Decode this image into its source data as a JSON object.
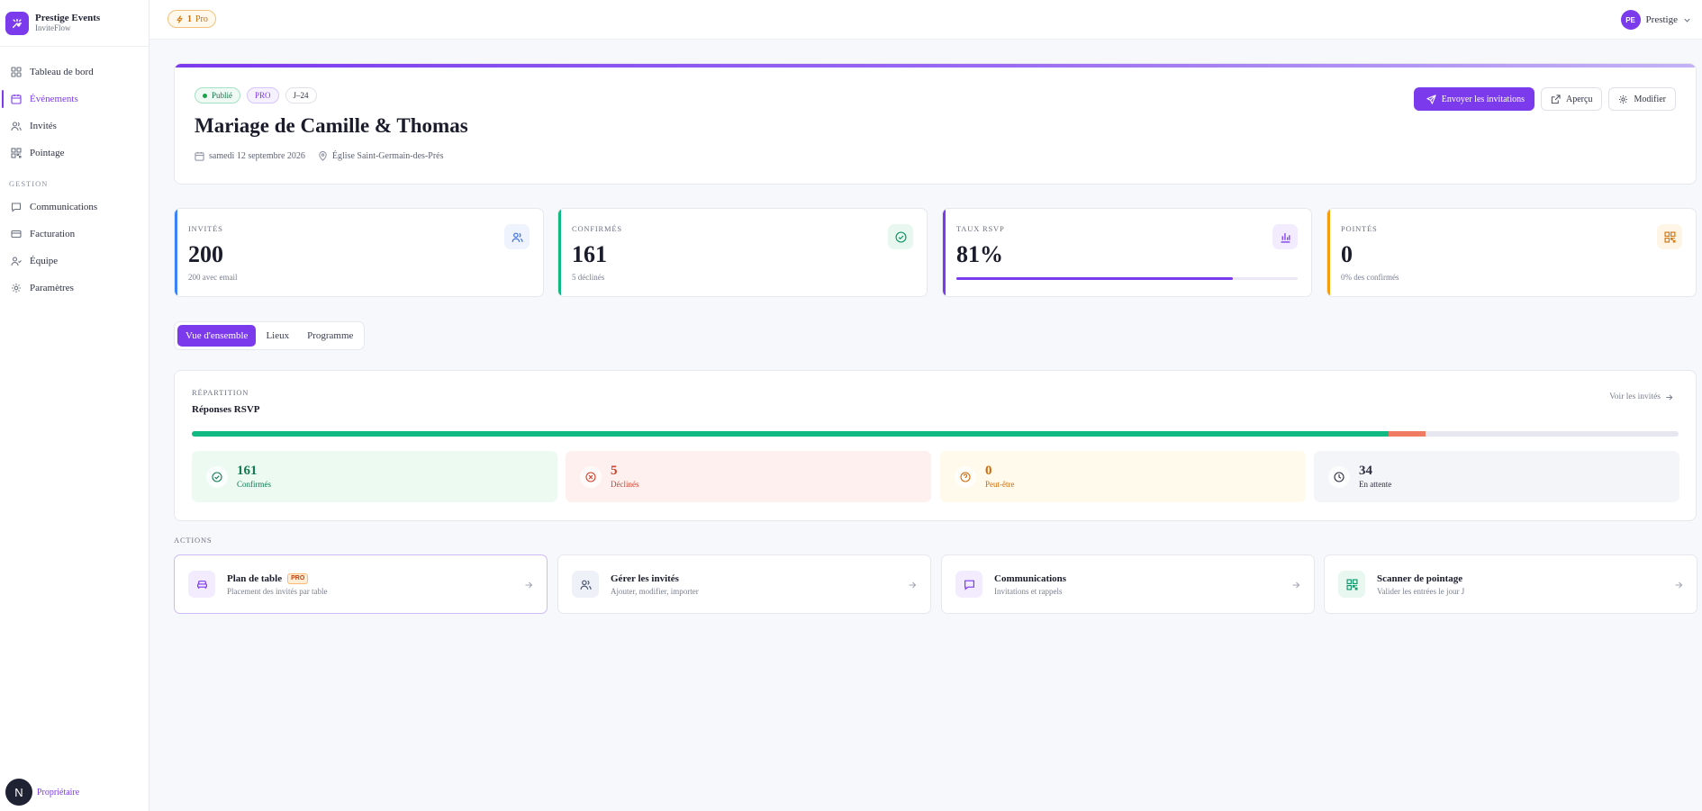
{
  "brand": {
    "name": "Prestige Events",
    "subtitle": "InviteFlow"
  },
  "nav": {
    "items": [
      {
        "label": "Tableau de bord",
        "icon": "grid-icon"
      },
      {
        "label": "Événements",
        "icon": "calendar-icon",
        "active": true
      },
      {
        "label": "Invités",
        "icon": "users-icon"
      },
      {
        "label": "Pointage",
        "icon": "qr-icon"
      }
    ],
    "section_label": "GESTION",
    "management": [
      {
        "label": "Communications",
        "icon": "message-icon"
      },
      {
        "label": "Facturation",
        "icon": "card-icon"
      },
      {
        "label": "Équipe",
        "icon": "team-icon"
      },
      {
        "label": "Paramètres",
        "icon": "gear-icon"
      }
    ],
    "owner": {
      "initial": "N",
      "label": "Propriétaire"
    }
  },
  "topbar": {
    "plan": {
      "count": "1",
      "label": "Pro"
    },
    "user": {
      "initials": "PE",
      "name": "Prestige"
    }
  },
  "event": {
    "chips": {
      "status": "Publié",
      "plan": "PRO",
      "countdown": "J–24"
    },
    "title": "Mariage de Camille & Thomas",
    "date": "samedi 12 septembre 2026",
    "venue": "Église Saint-Germain-des-Prés",
    "actions": {
      "send": "Envoyer les invitations",
      "preview": "Aperçu",
      "edit": "Modifier"
    }
  },
  "stats": [
    {
      "label": "INVITÉS",
      "value": "200",
      "sub": "200 avec email",
      "accent": "#3b82f6",
      "icon_bg": "#eef3fe",
      "icon_color": "#3b6fe0"
    },
    {
      "label": "CONFIRMÉS",
      "value": "161",
      "sub": "5 déclinés",
      "accent": "#10b981",
      "icon_bg": "#e8f8f1",
      "icon_color": "#12966a"
    },
    {
      "label": "TAUX RSVP",
      "value": "81%",
      "progress": 0.81,
      "accent": "#7c3aed",
      "icon_bg": "#f2ecfe",
      "icon_color": "#7c3aed"
    },
    {
      "label": "POINTÉS",
      "value": "0",
      "sub": "0% des confirmés",
      "accent": "#f59e0b",
      "icon_bg": "#fff5e6",
      "icon_color": "#d97706"
    }
  ],
  "tabs": [
    "Vue d'ensemble",
    "Lieux",
    "Programme"
  ],
  "rsvp": {
    "eyebrow": "RÉPARTITION",
    "title": "Réponses RSVP",
    "link": "Voir les invités",
    "total": 200,
    "segments": [
      {
        "key": "confirmed",
        "value": 161,
        "color": "#10b981"
      },
      {
        "key": "declined",
        "value": 5,
        "color": "#ef7b62"
      },
      {
        "key": "maybe",
        "value": 0,
        "color": "#f5b82e"
      }
    ],
    "boxes": [
      {
        "value": "161",
        "label": "Confirmés",
        "bg": "#ecfaf2",
        "color": "#137a52",
        "icon": "check-circle-icon"
      },
      {
        "value": "5",
        "label": "Déclinés",
        "bg": "#fdf0ee",
        "color": "#d3422b",
        "icon": "x-circle-icon"
      },
      {
        "value": "0",
        "label": "Peut-être",
        "bg": "#fffaeb",
        "color": "#d06a09",
        "icon": "help-circle-icon"
      },
      {
        "value": "34",
        "label": "En attente",
        "bg": "#f4f5f8",
        "color": "#2a2e3e",
        "icon": "clock-icon"
      }
    ]
  },
  "actions_section": {
    "label": "ACTIONS",
    "items": [
      {
        "title": "Plan de table",
        "sub": "Placement des invités par table",
        "pro": "PRO",
        "icon": "table-icon",
        "icon_bg": "#f2ecfe",
        "icon_color": "#7c3aed"
      },
      {
        "title": "Gérer les invités",
        "sub": "Ajouter, modifier, importer",
        "icon": "users-icon",
        "icon_bg": "#eef1f8",
        "icon_color": "#4b5570"
      },
      {
        "title": "Communications",
        "sub": "Invitations et rappels",
        "icon": "message-icon",
        "icon_bg": "#f2ecfe",
        "icon_color": "#7c3aed"
      },
      {
        "title": "Scanner de pointage",
        "sub": "Valider les entrées le jour J",
        "icon": "qr-icon",
        "icon_bg": "#e8f8f1",
        "icon_color": "#12966a"
      }
    ]
  }
}
